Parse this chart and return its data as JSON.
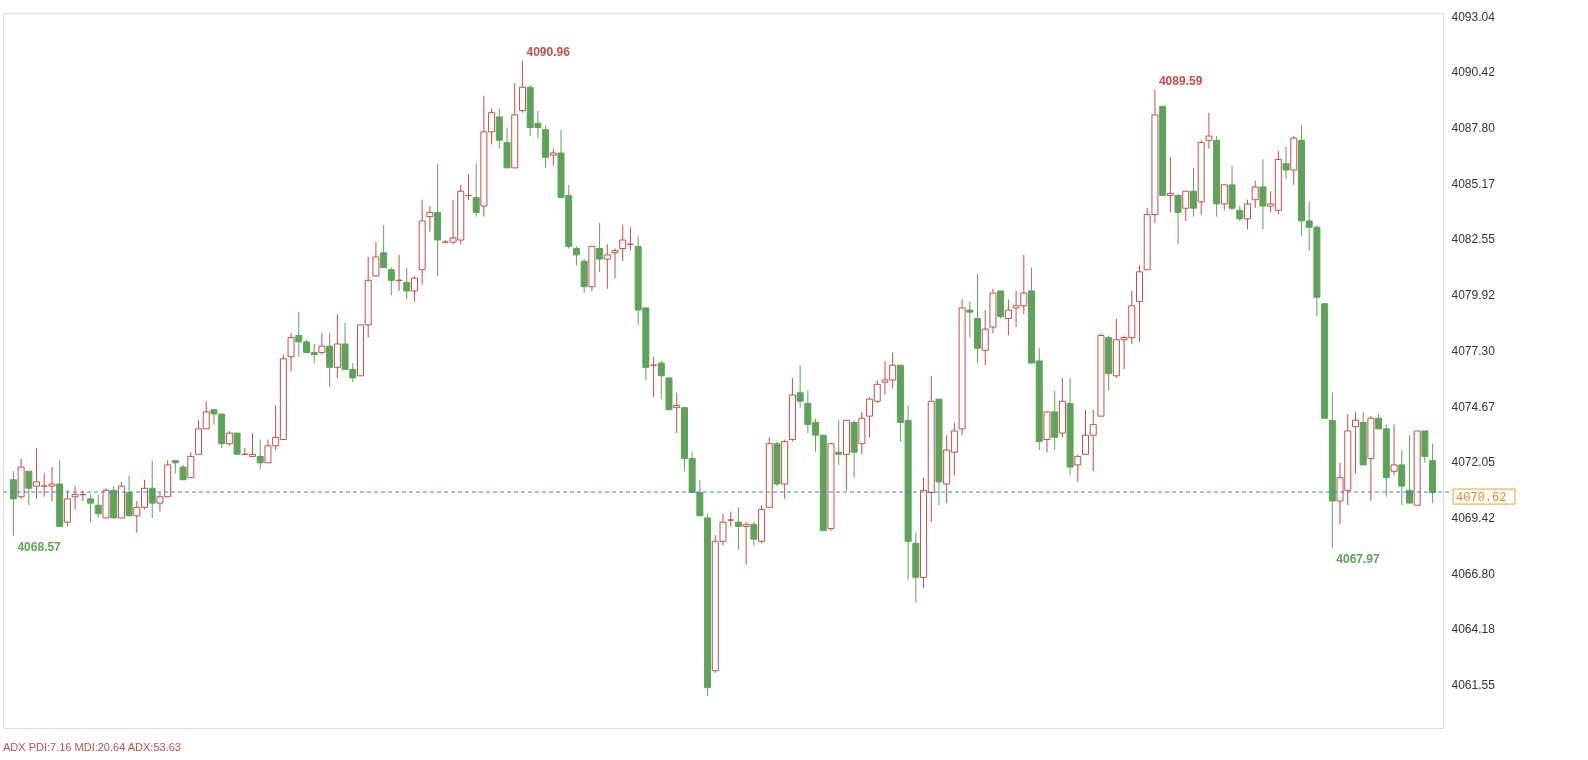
{
  "chart_data": {
    "type": "candlestick",
    "categories": [
      null,
      null,
      null,
      null,
      null,
      null,
      null,
      null,
      null,
      null,
      null,
      null,
      null,
      null,
      null,
      null,
      null,
      null,
      null,
      null,
      null,
      null,
      null,
      null,
      null,
      null,
      null,
      null,
      null,
      null,
      null,
      null,
      null,
      null,
      null,
      null,
      null,
      null,
      null,
      null,
      null,
      null,
      null,
      null,
      null,
      null,
      null,
      null,
      null,
      null,
      null,
      null,
      null,
      null,
      null,
      null,
      null,
      null,
      null,
      null,
      null,
      null,
      null,
      null,
      null,
      null,
      null,
      null,
      null,
      null,
      null,
      null,
      null,
      null,
      null,
      null,
      null,
      null,
      null,
      null,
      null,
      null,
      null,
      null,
      null,
      null,
      null,
      null,
      null,
      null,
      null,
      null,
      null,
      null,
      null,
      null,
      null,
      null,
      null,
      null,
      null,
      null,
      null,
      null,
      null,
      null,
      null,
      null,
      null,
      null,
      null,
      null,
      null,
      null,
      null,
      null,
      null,
      null,
      null,
      null,
      null,
      null,
      null,
      null,
      null,
      null,
      null,
      null,
      null,
      null,
      null,
      null,
      null,
      null,
      null,
      null,
      null,
      null,
      null,
      null,
      null,
      null,
      null,
      null,
      null,
      null,
      null,
      null,
      null,
      null,
      null,
      null,
      null,
      null,
      null,
      null,
      null,
      null,
      null,
      null,
      null,
      null,
      null,
      null,
      null,
      null,
      null,
      null,
      null,
      null,
      null,
      null,
      null,
      null,
      null,
      null,
      null,
      null,
      null,
      null,
      null,
      null,
      null,
      null,
      null
    ],
    "ohlc": [
      [
        4071.2,
        4071.6,
        4068.57,
        4070.3
      ],
      [
        4070.4,
        4072.2,
        4070.3,
        4071.8
      ],
      [
        4071.6,
        4071.6,
        4070.0,
        4070.8
      ],
      [
        4070.9,
        4072.7,
        4070.3,
        4071.1
      ],
      [
        4070.9,
        4071.5,
        4070.4,
        4070.9
      ],
      [
        4070.9,
        4071.8,
        4070.2,
        4071.0
      ],
      [
        4071.0,
        4072.1,
        4069.0,
        4069.0
      ],
      [
        4069.2,
        4070.7,
        4069.0,
        4070.3
      ],
      [
        4070.4,
        4070.9,
        4069.8,
        4070.5
      ],
      [
        4070.5,
        4070.7,
        4070.2,
        4070.5
      ],
      [
        4070.3,
        4070.5,
        4069.2,
        4070.1
      ],
      [
        4070.0,
        4070.5,
        4069.4,
        4069.6
      ],
      [
        4069.4,
        4070.8,
        4069.4,
        4070.7
      ],
      [
        4070.7,
        4070.9,
        4069.4,
        4069.4
      ],
      [
        4069.4,
        4071.1,
        4069.4,
        4070.9
      ],
      [
        4070.6,
        4071.4,
        4069.5,
        4069.5
      ],
      [
        4069.5,
        4070.2,
        4068.7,
        4069.9
      ],
      [
        4069.9,
        4071.2,
        4069.8,
        4070.8
      ],
      [
        4070.8,
        4072.1,
        4069.4,
        4070.1
      ],
      [
        4070.1,
        4070.6,
        4069.7,
        4070.4
      ],
      [
        4070.4,
        4072.1,
        4070.4,
        4071.9
      ],
      [
        4072.1,
        4072.1,
        4071.5,
        4072.0
      ],
      [
        4071.8,
        4071.9,
        4071.2,
        4071.2
      ],
      [
        4071.3,
        4072.5,
        4071.3,
        4072.3
      ],
      [
        4072.4,
        4074.0,
        4072.4,
        4073.6
      ],
      [
        4073.6,
        4074.9,
        4073.6,
        4074.4
      ],
      [
        4074.5,
        4074.5,
        4073.8,
        4074.3
      ],
      [
        4074.3,
        4074.3,
        4072.7,
        4072.9
      ],
      [
        4072.9,
        4073.5,
        4072.8,
        4073.4
      ],
      [
        4073.4,
        4073.4,
        4072.4,
        4072.4
      ],
      [
        4072.4,
        4072.7,
        4072.4,
        4072.4
      ],
      [
        4072.3,
        4073.4,
        4072.3,
        4072.4
      ],
      [
        4072.3,
        4073.1,
        4071.7,
        4072.0
      ],
      [
        4072.0,
        4073.1,
        4072.0,
        4072.8
      ],
      [
        4072.8,
        4074.7,
        4072.6,
        4073.2
      ],
      [
        4073.1,
        4077.1,
        4073.1,
        4076.9
      ],
      [
        4077.0,
        4078.1,
        4076.3,
        4077.9
      ],
      [
        4078.0,
        4079.1,
        4077.0,
        4077.7
      ],
      [
        4077.7,
        4077.8,
        4077.2,
        4077.2
      ],
      [
        4077.2,
        4077.6,
        4076.7,
        4077.1
      ],
      [
        4077.2,
        4078.1,
        4077.1,
        4077.5
      ],
      [
        4077.5,
        4078.1,
        4075.6,
        4076.5
      ],
      [
        4076.5,
        4079.0,
        4076.0,
        4077.6
      ],
      [
        4077.6,
        4078.6,
        4076.4,
        4076.4
      ],
      [
        4076.4,
        4076.7,
        4075.8,
        4076.0
      ],
      [
        4076.1,
        4078.5,
        4076.1,
        4078.5
      ],
      [
        4078.5,
        4081.7,
        4077.9,
        4080.6
      ],
      [
        4080.8,
        4082.4,
        4080.8,
        4081.7
      ],
      [
        4081.9,
        4083.2,
        4081.2,
        4081.2
      ],
      [
        4081.1,
        4081.2,
        4079.9,
        4080.6
      ],
      [
        4080.6,
        4081.8,
        4080.1,
        4080.6
      ],
      [
        4080.5,
        4081.2,
        4079.7,
        4080.1
      ],
      [
        4080.1,
        4080.8,
        4079.6,
        4080.7
      ],
      [
        4081.1,
        4084.4,
        4080.4,
        4083.4
      ],
      [
        4083.6,
        4084.1,
        4082.9,
        4083.8
      ],
      [
        4083.8,
        4086.1,
        4080.8,
        4082.5
      ],
      [
        4082.4,
        4082.5,
        4082.4,
        4082.4
      ],
      [
        4082.4,
        4084.4,
        4082.3,
        4082.6
      ],
      [
        4082.5,
        4085.1,
        4082.3,
        4084.8
      ],
      [
        4084.6,
        4085.6,
        4084.4,
        4084.6
      ],
      [
        4084.5,
        4086.1,
        4083.6,
        4083.8
      ],
      [
        4084.1,
        4089.3,
        4083.6,
        4087.6
      ],
      [
        4087.6,
        4088.7,
        4087.0,
        4088.5
      ],
      [
        4088.3,
        4088.7,
        4086.8,
        4087.2
      ],
      [
        4087.1,
        4087.8,
        4085.9,
        4085.9
      ],
      [
        4085.9,
        4089.9,
        4085.9,
        4088.4
      ],
      [
        4088.6,
        4090.96,
        4088.5,
        4089.7
      ],
      [
        4089.7,
        4089.8,
        4087.4,
        4087.8
      ],
      [
        4088.0,
        4088.6,
        4087.3,
        4087.8
      ],
      [
        4087.7,
        4087.9,
        4085.9,
        4086.4
      ],
      [
        4086.5,
        4086.8,
        4086.0,
        4086.6
      ],
      [
        4086.6,
        4087.7,
        4084.5,
        4084.5
      ],
      [
        4084.6,
        4085.1,
        4082.1,
        4082.2
      ],
      [
        4082.1,
        4082.2,
        4081.3,
        4081.8
      ],
      [
        4081.5,
        4081.6,
        4080.0,
        4080.3
      ],
      [
        4080.3,
        4082.2,
        4080.1,
        4082.2
      ],
      [
        4082.1,
        4083.3,
        4081.0,
        4081.6
      ],
      [
        4081.6,
        4082.3,
        4080.2,
        4081.8
      ],
      [
        4081.9,
        4082.1,
        4080.7,
        4082.0
      ],
      [
        4082.1,
        4083.2,
        4081.5,
        4082.5
      ],
      [
        4082.3,
        4083.1,
        4082.0,
        4082.3
      ],
      [
        4082.2,
        4082.7,
        4078.5,
        4079.2
      ],
      [
        4079.3,
        4079.3,
        4075.9,
        4076.5
      ],
      [
        4076.6,
        4077.0,
        4075.1,
        4076.6
      ],
      [
        4076.7,
        4076.8,
        4075.0,
        4076.1
      ],
      [
        4076.0,
        4076.0,
        4074.5,
        4074.5
      ],
      [
        4074.6,
        4075.3,
        4073.4,
        4074.7
      ],
      [
        4074.6,
        4074.6,
        4071.6,
        4072.2
      ],
      [
        4072.2,
        4072.5,
        4070.6,
        4070.6
      ],
      [
        4070.6,
        4071.2,
        4069.5,
        4069.5
      ],
      [
        4069.4,
        4069.6,
        4061.0,
        4061.4
      ],
      [
        4062.2,
        4068.6,
        4062.1,
        4068.3
      ],
      [
        4068.3,
        4069.6,
        4068.1,
        4069.2
      ],
      [
        4069.3,
        4069.7,
        4069.0,
        4069.3
      ],
      [
        4069.2,
        4069.9,
        4067.9,
        4069.0
      ],
      [
        4069.0,
        4069.2,
        4067.2,
        4069.1
      ],
      [
        4069.1,
        4069.2,
        4068.1,
        4068.4
      ],
      [
        4068.3,
        4070.0,
        4068.2,
        4069.8
      ],
      [
        4069.9,
        4073.2,
        4069.9,
        4072.9
      ],
      [
        4072.9,
        4073.0,
        4070.9,
        4071.0
      ],
      [
        4071.0,
        4073.1,
        4070.3,
        4073.0
      ],
      [
        4073.1,
        4076.0,
        4073.0,
        4075.2
      ],
      [
        4075.3,
        4076.6,
        4074.6,
        4074.9
      ],
      [
        4074.8,
        4075.4,
        4073.4,
        4073.8
      ],
      [
        4073.9,
        4074.1,
        4072.5,
        4073.3
      ],
      [
        4073.3,
        4073.3,
        4068.8,
        4068.8
      ],
      [
        4068.9,
        4072.9,
        4068.8,
        4072.9
      ],
      [
        4072.5,
        4074.0,
        4071.9,
        4072.4
      ],
      [
        4072.4,
        4074.0,
        4070.7,
        4074.0
      ],
      [
        4073.9,
        4074.0,
        4071.3,
        4072.5
      ],
      [
        4072.9,
        4074.4,
        4072.4,
        4074.1
      ],
      [
        4074.2,
        4075.1,
        4073.2,
        4075.0
      ],
      [
        4074.9,
        4075.9,
        4074.8,
        4075.7
      ],
      [
        4075.8,
        4076.8,
        4075.2,
        4075.9
      ],
      [
        4075.9,
        4077.2,
        4075.5,
        4076.6
      ],
      [
        4076.6,
        4076.6,
        4073.0,
        4073.9
      ],
      [
        4074.0,
        4074.7,
        4066.5,
        4068.3
      ],
      [
        4068.2,
        4068.7,
        4065.4,
        4066.6
      ],
      [
        4066.6,
        4071.3,
        4066.1,
        4070.7
      ],
      [
        4070.6,
        4076.1,
        4069.2,
        4074.9
      ],
      [
        4075.0,
        4075.0,
        4070.0,
        4071.1
      ],
      [
        4071.0,
        4073.3,
        4070.1,
        4072.6
      ],
      [
        4072.5,
        4073.9,
        4071.4,
        4073.5
      ],
      [
        4073.6,
        4079.7,
        4073.3,
        4079.3
      ],
      [
        4079.2,
        4079.6,
        4077.9,
        4079.1
      ],
      [
        4078.8,
        4080.9,
        4076.7,
        4077.4
      ],
      [
        4077.3,
        4079.2,
        4076.6,
        4078.3
      ],
      [
        4078.4,
        4080.2,
        4078.1,
        4080.0
      ],
      [
        4080.1,
        4080.1,
        4078.8,
        4078.9
      ],
      [
        4078.8,
        4079.7,
        4078.0,
        4079.2
      ],
      [
        4079.3,
        4080.1,
        4078.4,
        4079.4
      ],
      [
        4079.4,
        4081.8,
        4079.0,
        4080.0
      ],
      [
        4080.1,
        4081.2,
        4076.7,
        4076.7
      ],
      [
        4076.8,
        4077.4,
        4072.6,
        4073.0
      ],
      [
        4073.1,
        4074.4,
        4072.5,
        4074.4
      ],
      [
        4074.4,
        4075.4,
        4072.6,
        4073.2
      ],
      [
        4073.4,
        4076.0,
        4073.2,
        4074.9
      ],
      [
        4074.8,
        4076.0,
        4071.4,
        4071.8
      ],
      [
        4071.9,
        4072.4,
        4071.1,
        4072.3
      ],
      [
        4072.4,
        4074.5,
        4072.4,
        4073.3
      ],
      [
        4073.3,
        4074.5,
        4071.6,
        4073.8
      ],
      [
        4074.2,
        4078.1,
        4074.2,
        4078.0
      ],
      [
        4077.9,
        4078.0,
        4075.4,
        4076.2
      ],
      [
        4076.1,
        4078.8,
        4076.0,
        4077.8
      ],
      [
        4077.8,
        4078.0,
        4076.4,
        4077.9
      ],
      [
        4077.9,
        4080.1,
        4077.6,
        4079.4
      ],
      [
        4079.6,
        4081.3,
        4077.7,
        4081.0
      ],
      [
        4081.1,
        4084.0,
        4081.1,
        4083.7
      ],
      [
        4083.7,
        4089.59,
        4083.3,
        4088.4
      ],
      [
        4088.8,
        4088.8,
        4084.6,
        4084.6
      ],
      [
        4084.6,
        4086.4,
        4083.8,
        4084.7
      ],
      [
        4084.6,
        4084.7,
        4082.3,
        4083.8
      ],
      [
        4084.0,
        4084.8,
        4083.4,
        4084.8
      ],
      [
        4084.8,
        4085.9,
        4083.6,
        4084.0
      ],
      [
        4084.3,
        4087.2,
        4083.7,
        4087.1
      ],
      [
        4087.2,
        4088.5,
        4086.8,
        4087.4
      ],
      [
        4087.2,
        4087.4,
        4083.6,
        4084.2
      ],
      [
        4084.2,
        4085.1,
        4083.9,
        4085.1
      ],
      [
        4085.1,
        4086.0,
        4083.9,
        4084.0
      ],
      [
        4083.9,
        4084.1,
        4083.4,
        4083.5
      ],
      [
        4083.5,
        4084.4,
        4083.0,
        4084.2
      ],
      [
        4084.4,
        4085.3,
        4084.0,
        4085.0
      ],
      [
        4085.0,
        4086.3,
        4083.0,
        4084.1
      ],
      [
        4084.1,
        4084.8,
        4083.8,
        4084.2
      ],
      [
        4083.9,
        4086.7,
        4083.7,
        4086.3
      ],
      [
        4086.1,
        4086.9,
        4085.4,
        4085.8
      ],
      [
        4085.8,
        4087.4,
        4085.1,
        4087.3
      ],
      [
        4087.2,
        4087.9,
        4082.7,
        4083.4
      ],
      [
        4083.4,
        4084.3,
        4082.0,
        4083.1
      ],
      [
        4083.1,
        4083.2,
        4078.9,
        4079.8
      ],
      [
        4079.5,
        4079.5,
        4074.1,
        4074.1
      ],
      [
        4074.0,
        4075.3,
        4067.97,
        4070.2
      ],
      [
        4070.2,
        4072.0,
        4069.1,
        4071.3
      ],
      [
        4070.7,
        4074.3,
        4070.0,
        4073.5
      ],
      [
        4073.7,
        4074.4,
        4071.5,
        4074.0
      ],
      [
        4073.9,
        4074.4,
        4071.9,
        4071.9
      ],
      [
        4072.2,
        4074.2,
        4070.2,
        4074.1
      ],
      [
        4074.1,
        4074.3,
        4073.6,
        4073.6
      ],
      [
        4073.6,
        4073.8,
        4070.4,
        4071.3
      ],
      [
        4071.6,
        4073.8,
        4071.4,
        4071.9
      ],
      [
        4071.9,
        4072.6,
        4070.0,
        4070.9
      ],
      [
        4070.7,
        4073.3,
        4070.1,
        4070.1
      ],
      [
        4070.0,
        4073.5,
        4070.0,
        4073.5
      ],
      [
        4073.5,
        4073.5,
        4072.0,
        4072.3
      ],
      [
        4072.1,
        4072.9,
        4070.1,
        4070.6
      ]
    ],
    "ylim": [
      4059.5,
      4093.2
    ],
    "yticks": [
      4093.04,
      4090.42,
      {
        "value": 4087.8,
        "label": "4087.80"
      },
      4085.17,
      4082.55,
      4079.92,
      {
        "value": 4077.3,
        "label": "4077.30"
      },
      4074.67,
      4072.05,
      4069.42,
      {
        "value": 4066.8,
        "label": "4066.80"
      },
      4064.18,
      4061.55
    ],
    "tick_labels": "y",
    "ref_lines": [
      {
        "axis": "y",
        "value": 4070.62,
        "label": "4070.62",
        "color": "#3d85c6",
        "line_style": "dashed"
      }
    ],
    "annotations": [
      "4090.96",
      "4089.59",
      "4068.57",
      "4067.97",
      "ADX PDI:7.16 MDI:20.64 ADX:53.63"
    ]
  }
}
